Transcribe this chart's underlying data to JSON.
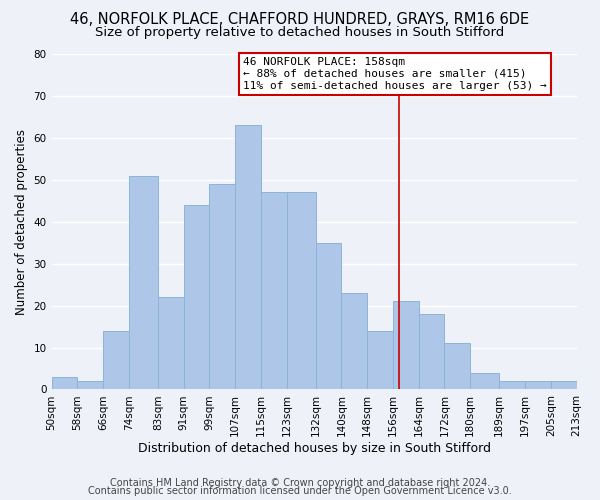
{
  "title1": "46, NORFOLK PLACE, CHAFFORD HUNDRED, GRAYS, RM16 6DE",
  "title2": "Size of property relative to detached houses in South Stifford",
  "xlabel": "Distribution of detached houses by size in South Stifford",
  "ylabel": "Number of detached properties",
  "bar_left_edges": [
    50,
    58,
    66,
    74,
    83,
    91,
    99,
    107,
    115,
    123,
    132,
    140,
    148,
    156,
    164,
    172,
    180,
    189,
    197,
    205
  ],
  "bar_widths": [
    8,
    8,
    8,
    9,
    8,
    8,
    8,
    8,
    8,
    9,
    8,
    8,
    8,
    8,
    8,
    8,
    9,
    8,
    8,
    8
  ],
  "bar_heights": [
    3,
    2,
    14,
    51,
    22,
    44,
    49,
    63,
    47,
    47,
    35,
    23,
    14,
    21,
    18,
    11,
    4,
    2,
    2,
    2
  ],
  "bar_color": "#aec6e8",
  "bar_edgecolor": "#8ab4d8",
  "ylim": [
    0,
    80
  ],
  "yticks": [
    0,
    10,
    20,
    30,
    40,
    50,
    60,
    70,
    80
  ],
  "xlim": [
    50,
    213
  ],
  "xtick_labels": [
    "50sqm",
    "58sqm",
    "66sqm",
    "74sqm",
    "83sqm",
    "91sqm",
    "99sqm",
    "107sqm",
    "115sqm",
    "123sqm",
    "132sqm",
    "140sqm",
    "148sqm",
    "156sqm",
    "164sqm",
    "172sqm",
    "180sqm",
    "189sqm",
    "197sqm",
    "205sqm",
    "213sqm"
  ],
  "xtick_positions": [
    50,
    58,
    66,
    74,
    83,
    91,
    99,
    107,
    115,
    123,
    132,
    140,
    148,
    156,
    164,
    172,
    180,
    189,
    197,
    205,
    213
  ],
  "vline_x": 158,
  "vline_color": "#cc0000",
  "annotation_title": "46 NORFOLK PLACE: 158sqm",
  "annotation_line1": "← 88% of detached houses are smaller (415)",
  "annotation_line2": "11% of semi-detached houses are larger (53) →",
  "annotation_box_color": "#ffffff",
  "annotation_box_edgecolor": "#cc0000",
  "footer1": "Contains HM Land Registry data © Crown copyright and database right 2024.",
  "footer2": "Contains public sector information licensed under the Open Government Licence v3.0.",
  "bg_color": "#eef2f8",
  "grid_color": "#ffffff",
  "title1_fontsize": 10.5,
  "title2_fontsize": 9.5,
  "xlabel_fontsize": 9,
  "ylabel_fontsize": 8.5,
  "tick_fontsize": 7.5,
  "annotation_fontsize": 8,
  "footer_fontsize": 7
}
